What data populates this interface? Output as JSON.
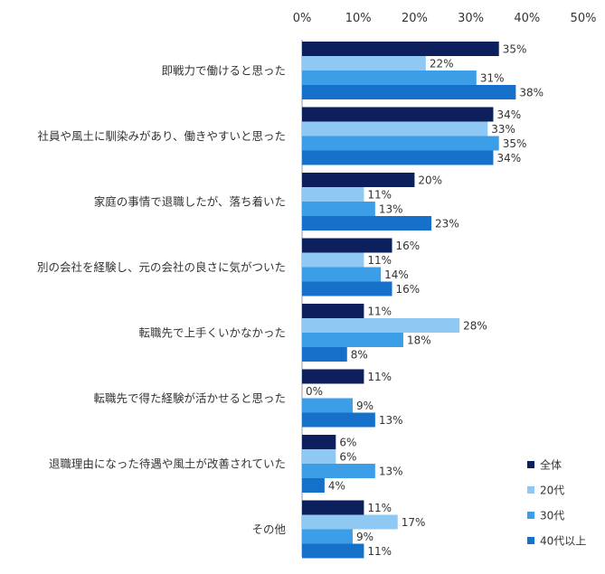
{
  "chart_data": {
    "type": "bar",
    "orientation": "horizontal",
    "xlim": [
      0,
      50
    ],
    "x_ticks": [
      "0%",
      "10%",
      "20%",
      "30%",
      "40%",
      "50%"
    ],
    "value_suffix": "%",
    "legend_position": "bottom-right",
    "categories": [
      "即戦力で働けると思った",
      "社員や風土に馴染みがあり、働きやすいと思った",
      "家庭の事情で退職したが、落ち着いた",
      "別の会社を経験し、元の会社の良さに気がついた",
      "転職先で上手くいかなかった",
      "転職先で得た経験が活かせると思った",
      "退職理由になった待遇や風土が改善されていた",
      "その他"
    ],
    "series": [
      {
        "name": "全体",
        "color": "#0d1f5c",
        "values": [
          35,
          34,
          20,
          16,
          11,
          11,
          6,
          11
        ]
      },
      {
        "name": "20代",
        "color": "#8ec8f3",
        "values": [
          22,
          33,
          11,
          11,
          28,
          0,
          6,
          17
        ]
      },
      {
        "name": "30代",
        "color": "#3d9ee8",
        "values": [
          31,
          35,
          13,
          14,
          18,
          9,
          13,
          9
        ]
      },
      {
        "name": "40代以上",
        "color": "#1470c8",
        "values": [
          38,
          34,
          23,
          16,
          8,
          13,
          4,
          11
        ]
      }
    ]
  }
}
